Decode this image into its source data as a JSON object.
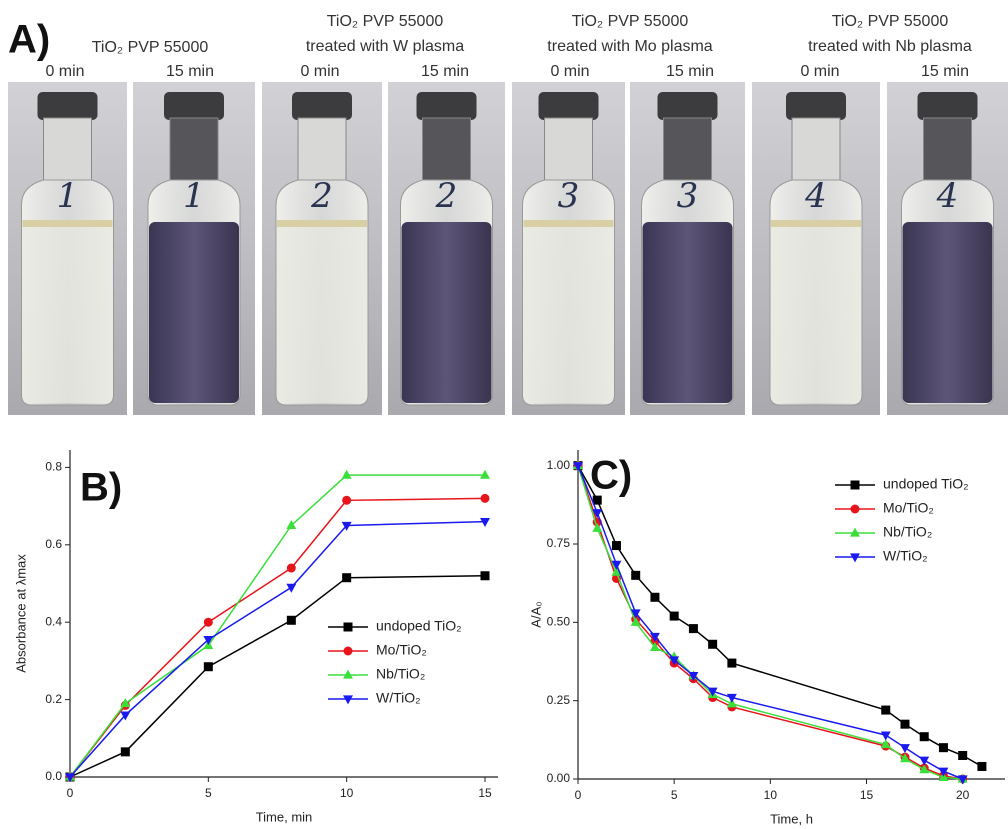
{
  "panel_a": {
    "label": "A)",
    "groups": [
      {
        "title": [
          "TiO₂ PVP 55000"
        ],
        "times": [
          "0 min",
          "15 min"
        ],
        "vial_labels": [
          "1",
          "1"
        ]
      },
      {
        "title": [
          "TiO₂ PVP 55000",
          "treated with W plasma"
        ],
        "times": [
          "0 min",
          "15 min"
        ],
        "vial_labels": [
          "2",
          "2"
        ]
      },
      {
        "title": [
          "TiO₂ PVP 55000",
          "treated with Mo plasma"
        ],
        "times": [
          "0 min",
          "15 min"
        ],
        "vial_labels": [
          "3",
          "3"
        ]
      },
      {
        "title": [
          "TiO₂ PVP 55000",
          "treated with Nb plasma"
        ],
        "times": [
          "0 min",
          "15 min"
        ],
        "vial_labels": [
          "4",
          "4"
        ]
      }
    ]
  },
  "chart_data": [
    {
      "type": "line",
      "panel_label": "B)",
      "x_label": "Time, min",
      "y_label": "Absorbance at λmax",
      "x": [
        0,
        2,
        5,
        8,
        10,
        15
      ],
      "xlim": [
        0,
        15.47
      ],
      "xticks": [
        0,
        5,
        10,
        15
      ],
      "ylim": [
        0,
        0.845
      ],
      "yticks": [
        {
          "value": 0,
          "label": "0.0"
        },
        0.2,
        0.4,
        0.6,
        0.8
      ],
      "legend": "lower right",
      "series": [
        {
          "name": "undoped TiO₂",
          "color": "#000000",
          "marker": "square",
          "values": [
            0,
            0.065,
            0.285,
            0.405,
            0.515,
            0.52
          ]
        },
        {
          "name": "Mo/TiO₂",
          "color": "#e8141b",
          "marker": "circle",
          "values": [
            0,
            0.185,
            0.4,
            0.54,
            0.715,
            0.72
          ]
        },
        {
          "name": "Nb/TiO₂",
          "color": "#3adf3a",
          "marker": "triangle-up",
          "values": [
            0,
            0.19,
            0.34,
            0.65,
            0.78,
            0.78
          ]
        },
        {
          "name": "W/TiO₂",
          "color": "#1a1aef",
          "marker": "triangle-down",
          "values": [
            0,
            0.16,
            0.355,
            0.49,
            0.65,
            0.66
          ]
        }
      ]
    },
    {
      "type": "line",
      "panel_label": "C)",
      "x_label": "Time, h",
      "y_label": "A/A₀",
      "xlim": [
        0,
        22.2
      ],
      "xticks": [
        0,
        5,
        10,
        15,
        20
      ],
      "ylim": [
        0,
        1.05
      ],
      "yticks": [
        {
          "value": 0,
          "label": "0.00"
        },
        {
          "value": 0.25,
          "label": "0.25"
        },
        {
          "value": 0.5,
          "label": "0.50"
        },
        {
          "value": 0.75,
          "label": "0.75"
        },
        {
          "value": 1,
          "label": "1.00"
        }
      ],
      "legend": "upper right",
      "series": [
        {
          "name": "undoped TiO₂",
          "color": "#000000",
          "marker": "square",
          "x": [
            0,
            1,
            2,
            3,
            4,
            5,
            6,
            7,
            8,
            16,
            17,
            18,
            19,
            20,
            21
          ],
          "values": [
            1,
            0.89,
            0.745,
            0.65,
            0.58,
            0.52,
            0.48,
            0.43,
            0.37,
            0.22,
            0.175,
            0.135,
            0.1,
            0.075,
            0.04
          ]
        },
        {
          "name": "Mo/TiO₂",
          "color": "#e8141b",
          "marker": "circle",
          "x": [
            0,
            1,
            2,
            3,
            4,
            5,
            6,
            7,
            8,
            16,
            17,
            18,
            19,
            20
          ],
          "values": [
            1,
            0.82,
            0.64,
            0.51,
            0.44,
            0.37,
            0.32,
            0.26,
            0.23,
            0.105,
            0.07,
            0.035,
            0.01,
            0
          ]
        },
        {
          "name": "Nb/TiO₂",
          "color": "#3adf3a",
          "marker": "triangle-up",
          "x": [
            0,
            1,
            2,
            3,
            4,
            5,
            6,
            7,
            8,
            16,
            17,
            18,
            19,
            20
          ],
          "values": [
            1,
            0.8,
            0.66,
            0.5,
            0.42,
            0.39,
            0.33,
            0.27,
            0.24,
            0.11,
            0.065,
            0.03,
            0.005,
            0
          ]
        },
        {
          "name": "W/TiO₂",
          "color": "#1a1aef",
          "marker": "triangle-down",
          "x": [
            0,
            1,
            2,
            3,
            4,
            5,
            6,
            7,
            8,
            16,
            17,
            18,
            19,
            20
          ],
          "values": [
            1,
            0.85,
            0.685,
            0.53,
            0.455,
            0.38,
            0.33,
            0.28,
            0.26,
            0.14,
            0.1,
            0.06,
            0.025,
            0
          ]
        }
      ]
    }
  ]
}
